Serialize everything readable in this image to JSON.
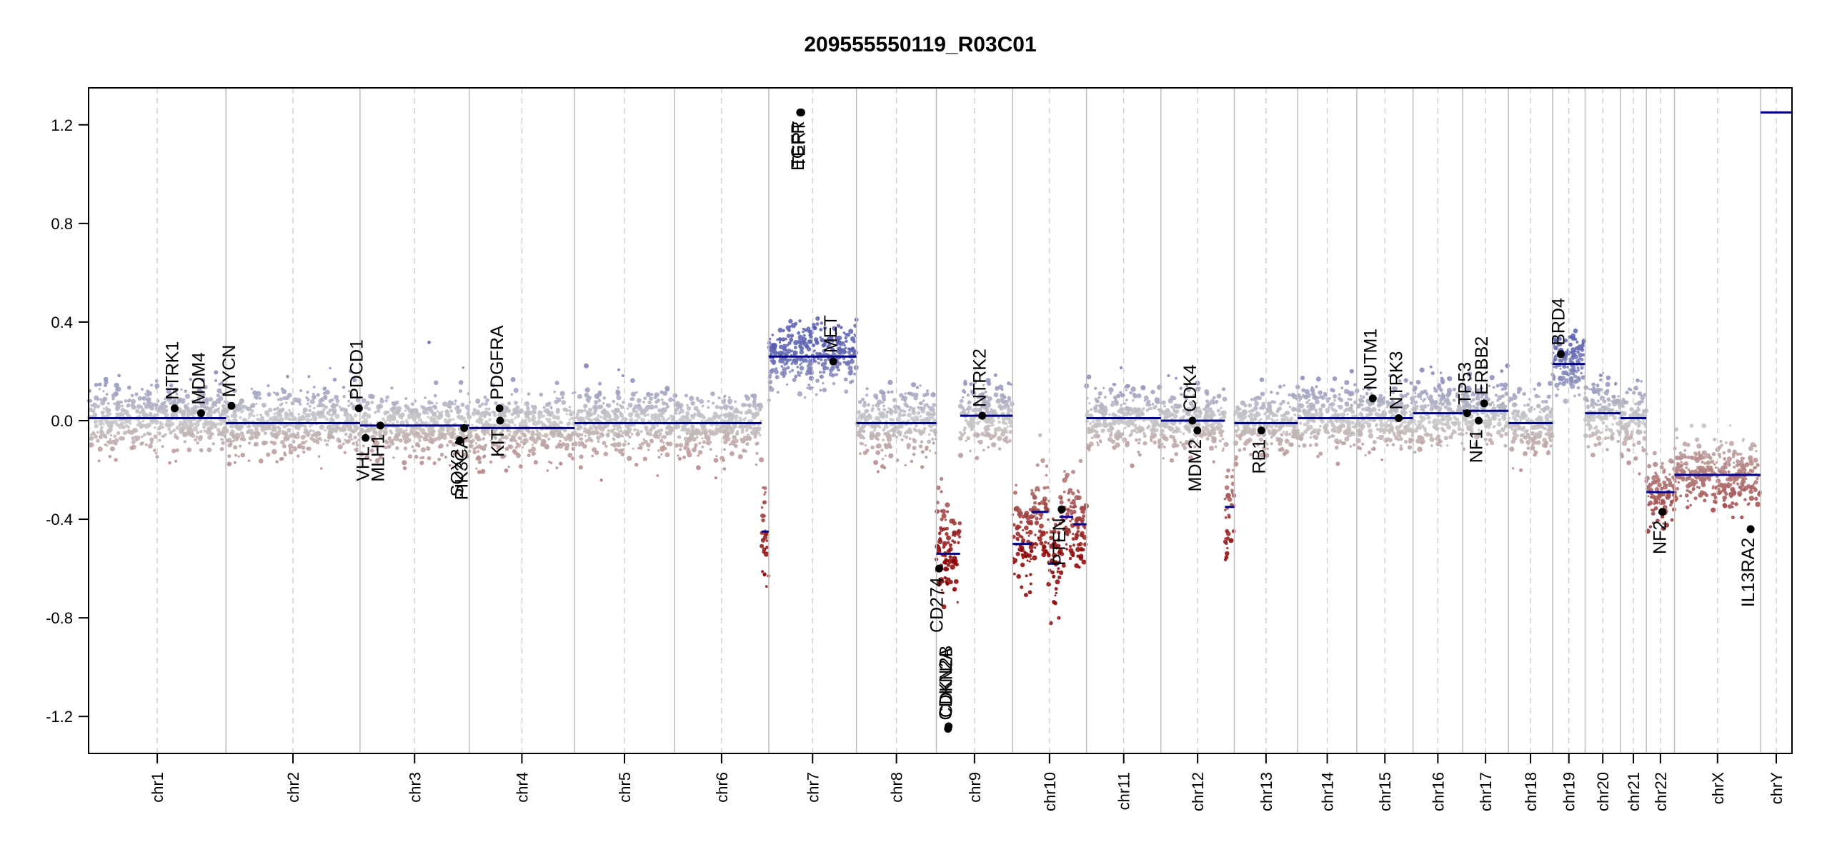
{
  "chart_data": {
    "type": "scatter",
    "title": "209555550119_R03C01",
    "xlabel": "",
    "ylabel": "",
    "ylim": [
      -1.35,
      1.35
    ],
    "yticks": [
      -1.2,
      -0.8,
      -0.4,
      0.0,
      0.4,
      0.8,
      1.2
    ],
    "ytick_labels": [
      "-1.2",
      "-0.8",
      "-0.4",
      "0.0",
      "0.4",
      "0.8",
      "1.2"
    ],
    "grid": false,
    "legend": "none",
    "colors": {
      "segment": "#00008b",
      "gain": "#5a5fb0",
      "neutral": "#c8c8c8",
      "loss": "#8b0000",
      "gene_point": "#000000"
    },
    "chromosomes": [
      {
        "name": "chr1",
        "start": 0,
        "end": 249
      },
      {
        "name": "chr2",
        "start": 249,
        "end": 492
      },
      {
        "name": "chr3",
        "start": 492,
        "end": 690
      },
      {
        "name": "chr4",
        "start": 690,
        "end": 881
      },
      {
        "name": "chr5",
        "start": 881,
        "end": 1062
      },
      {
        "name": "chr6",
        "start": 1062,
        "end": 1233
      },
      {
        "name": "chr7",
        "start": 1233,
        "end": 1392
      },
      {
        "name": "chr8",
        "start": 1392,
        "end": 1537
      },
      {
        "name": "chr9",
        "start": 1537,
        "end": 1675
      },
      {
        "name": "chr10",
        "start": 1675,
        "end": 1809
      },
      {
        "name": "chr11",
        "start": 1809,
        "end": 1944
      },
      {
        "name": "chr12",
        "start": 1944,
        "end": 2077
      },
      {
        "name": "chr13",
        "start": 2077,
        "end": 2192
      },
      {
        "name": "chr14",
        "start": 2192,
        "end": 2299
      },
      {
        "name": "chr15",
        "start": 2299,
        "end": 2401
      },
      {
        "name": "chr16",
        "start": 2401,
        "end": 2491
      },
      {
        "name": "chr17",
        "start": 2491,
        "end": 2574
      },
      {
        "name": "chr18",
        "start": 2574,
        "end": 2654
      },
      {
        "name": "chr19",
        "start": 2654,
        "end": 2713
      },
      {
        "name": "chr20",
        "start": 2713,
        "end": 2777
      },
      {
        "name": "chr21",
        "start": 2777,
        "end": 2824
      },
      {
        "name": "chr22",
        "start": 2824,
        "end": 2875
      },
      {
        "name": "chrX",
        "start": 2875,
        "end": 3031
      },
      {
        "name": "chrY",
        "start": 3031,
        "end": 3088
      }
    ],
    "segments": [
      {
        "x0": 0,
        "x1": 249,
        "y": 0.01
      },
      {
        "x0": 249,
        "x1": 492,
        "y": -0.01
      },
      {
        "x0": 492,
        "x1": 690,
        "y": -0.02
      },
      {
        "x0": 690,
        "x1": 881,
        "y": -0.03
      },
      {
        "x0": 881,
        "x1": 1062,
        "y": -0.01
      },
      {
        "x0": 1062,
        "x1": 1220,
        "y": -0.01
      },
      {
        "x0": 1220,
        "x1": 1233,
        "y": -0.45
      },
      {
        "x0": 1233,
        "x1": 1392,
        "y": 0.26
      },
      {
        "x0": 1392,
        "x1": 1537,
        "y": -0.01
      },
      {
        "x0": 1537,
        "x1": 1580,
        "y": -0.54
      },
      {
        "x0": 1580,
        "x1": 1675,
        "y": 0.02
      },
      {
        "x0": 1675,
        "x1": 1710,
        "y": -0.5
      },
      {
        "x0": 1710,
        "x1": 1740,
        "y": -0.37
      },
      {
        "x0": 1740,
        "x1": 1760,
        "y": -0.58
      },
      {
        "x0": 1760,
        "x1": 1785,
        "y": -0.39
      },
      {
        "x0": 1785,
        "x1": 1809,
        "y": -0.42
      },
      {
        "x0": 1809,
        "x1": 1944,
        "y": 0.01
      },
      {
        "x0": 1944,
        "x1": 2060,
        "y": 0.0
      },
      {
        "x0": 2060,
        "x1": 2077,
        "y": -0.35
      },
      {
        "x0": 2077,
        "x1": 2192,
        "y": -0.01
      },
      {
        "x0": 2192,
        "x1": 2299,
        "y": 0.01
      },
      {
        "x0": 2299,
        "x1": 2401,
        "y": 0.01
      },
      {
        "x0": 2401,
        "x1": 2491,
        "y": 0.03
      },
      {
        "x0": 2491,
        "x1": 2574,
        "y": 0.04
      },
      {
        "x0": 2574,
        "x1": 2654,
        "y": -0.01
      },
      {
        "x0": 2654,
        "x1": 2713,
        "y": 0.23
      },
      {
        "x0": 2713,
        "x1": 2777,
        "y": 0.03
      },
      {
        "x0": 2777,
        "x1": 2824,
        "y": 0.01
      },
      {
        "x0": 2824,
        "x1": 2875,
        "y": -0.29
      },
      {
        "x0": 2875,
        "x1": 3031,
        "y": -0.22
      },
      {
        "x0": 3031,
        "x1": 3088,
        "y": 1.25
      }
    ],
    "genes": [
      {
        "name": "NTRK1",
        "x": 156,
        "y": 0.05,
        "label_dir": "up"
      },
      {
        "name": "MDM4",
        "x": 204,
        "y": 0.03,
        "label_dir": "up"
      },
      {
        "name": "MYCN",
        "x": 259,
        "y": 0.06,
        "label_dir": "up"
      },
      {
        "name": "PDCD1",
        "x": 490,
        "y": 0.05,
        "label_dir": "up"
      },
      {
        "name": "VHL",
        "x": 502,
        "y": -0.07,
        "label_dir": "down"
      },
      {
        "name": "MLH1",
        "x": 529,
        "y": -0.02,
        "label_dir": "down"
      },
      {
        "name": "SOX2",
        "x": 673,
        "y": -0.08,
        "label_dir": "down"
      },
      {
        "name": "PIK3CA",
        "x": 681,
        "y": -0.03,
        "label_dir": "down"
      },
      {
        "name": "PDGFRA",
        "x": 745,
        "y": 0.05,
        "label_dir": "up"
      },
      {
        "name": "KIT",
        "x": 746,
        "y": 0.0,
        "label_dir": "down"
      },
      {
        "name": "EGFR",
        "x": 1290,
        "y": 1.25,
        "label_dir": "down"
      },
      {
        "name": "TERT",
        "x": 1292,
        "y": 1.25,
        "label_dir": "down"
      },
      {
        "name": "MET",
        "x": 1350,
        "y": 0.24,
        "label_dir": "up"
      },
      {
        "name": "CD274",
        "x": 1542,
        "y": -0.6,
        "label_dir": "down"
      },
      {
        "name": "CDKN2A",
        "x": 1558,
        "y": -1.25,
        "label_dir": "up"
      },
      {
        "name": "CDKN2B",
        "x": 1559,
        "y": -1.24,
        "label_dir": "up"
      },
      {
        "name": "NTRK2",
        "x": 1620,
        "y": 0.02,
        "label_dir": "up"
      },
      {
        "name": "PTEN",
        "x": 1764,
        "y": -0.36,
        "label_dir": "down"
      },
      {
        "name": "CDK4",
        "x": 2001,
        "y": 0.0,
        "label_dir": "up"
      },
      {
        "name": "MDM2",
        "x": 2010,
        "y": -0.04,
        "label_dir": "down"
      },
      {
        "name": "RB1",
        "x": 2126,
        "y": -0.04,
        "label_dir": "down"
      },
      {
        "name": "NUTM1",
        "x": 2328,
        "y": 0.09,
        "label_dir": "up"
      },
      {
        "name": "NTRK3",
        "x": 2375,
        "y": 0.01,
        "label_dir": "up"
      },
      {
        "name": "TP53",
        "x": 2499,
        "y": 0.03,
        "label_dir": "up"
      },
      {
        "name": "ERBB2",
        "x": 2530,
        "y": 0.07,
        "label_dir": "up"
      },
      {
        "name": "NF1",
        "x": 2520,
        "y": 0.0,
        "label_dir": "down"
      },
      {
        "name": "BRD4",
        "x": 2669,
        "y": 0.27,
        "label_dir": "up"
      },
      {
        "name": "NF2",
        "x": 2853,
        "y": -0.37,
        "label_dir": "down"
      },
      {
        "name": "IL13RA2",
        "x": 3013,
        "y": -0.44,
        "label_dir": "down"
      }
    ]
  }
}
